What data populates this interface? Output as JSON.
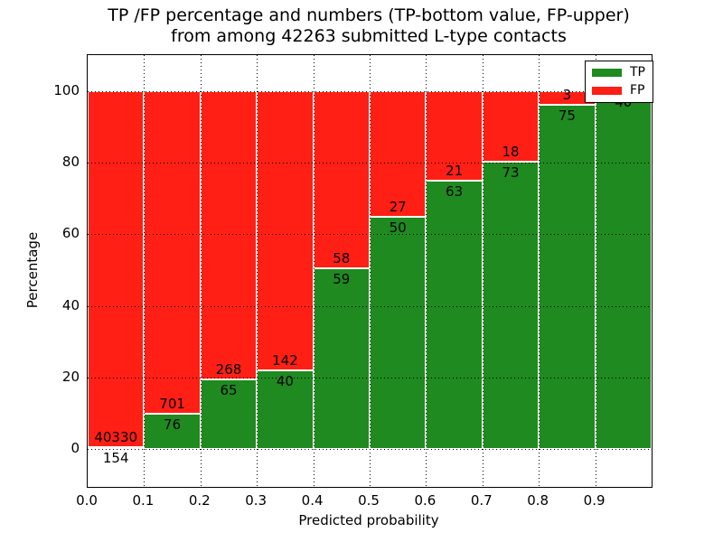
{
  "figure": {
    "title_line1": "TP /FP percentage and numbers (TP-bottom value, FP-upper)",
    "title_line2": "from among 42263 submitted L-type contacts",
    "xlabel": "Predicted probability",
    "ylabel": "Percentage",
    "background": "#ffffff",
    "text_color": "#000000"
  },
  "chart_data": {
    "type": "bar",
    "stacked": true,
    "title": "TP /FP percentage and numbers (TP-bottom value, FP-upper) from among 42263 submitted L-type contacts",
    "xlabel": "Predicted probability",
    "ylabel": "Percentage",
    "xlim": [
      0.0,
      1.0
    ],
    "ylim": [
      -11,
      110
    ],
    "grid": true,
    "bin_width": 0.1,
    "bin_starts": [
      0.0,
      0.1,
      0.2,
      0.3,
      0.4,
      0.5,
      0.6,
      0.7,
      0.8,
      0.9
    ],
    "x_tick_labels": [
      "0.0",
      "0.1",
      "0.2",
      "0.3",
      "0.4",
      "0.5",
      "0.6",
      "0.7",
      "0.8",
      "0.9"
    ],
    "y_tick_values": [
      0,
      20,
      40,
      60,
      80,
      100
    ],
    "y_tick_labels": [
      "0",
      "20",
      "40",
      "60",
      "80",
      "100"
    ],
    "series": [
      {
        "name": "TP",
        "color": "#1f8a1f",
        "counts": [
          154,
          76,
          65,
          40,
          59,
          50,
          63,
          73,
          75,
          40
        ]
      },
      {
        "name": "FP",
        "color": "#ff1f15",
        "counts": [
          40330,
          701,
          268,
          142,
          58,
          27,
          21,
          18,
          3,
          null
        ]
      }
    ],
    "legend": {
      "position": "upper-right",
      "entries": [
        {
          "label": "TP",
          "color": "#1f8a1f"
        },
        {
          "label": "FP",
          "color": "#ff1f15"
        }
      ]
    }
  }
}
